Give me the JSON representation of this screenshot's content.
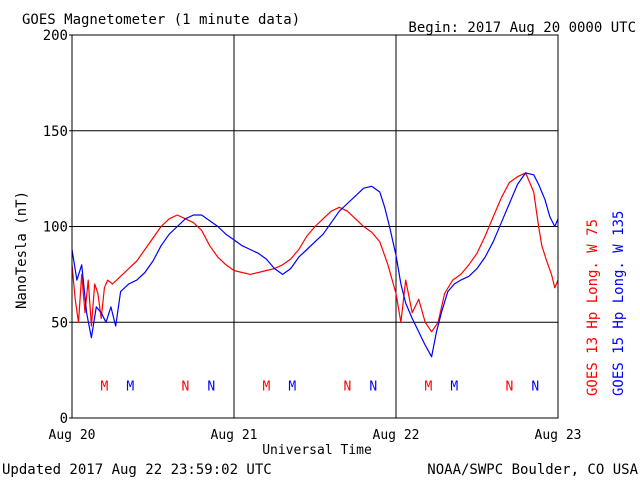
{
  "chart_data": {
    "type": "line",
    "title": "GOES Magnetometer (1 minute data)",
    "begin": "Begin:  2017 Aug 20 0000 UTC",
    "xlabel": "Universal Time",
    "ylabel": "NanoTesla (nT)",
    "xlim": [
      0,
      3
    ],
    "ylim": [
      0,
      200
    ],
    "y_ticks": [
      0,
      50,
      100,
      150,
      200
    ],
    "x_ticks": [
      {
        "value": 0,
        "label": "Aug 20"
      },
      {
        "value": 1,
        "label": "Aug 21"
      },
      {
        "value": 2,
        "label": "Aug 22"
      },
      {
        "value": 3,
        "label": "Aug 23"
      }
    ],
    "grid": true,
    "x_unit": "days since Aug 20 0000 UTC",
    "series": [
      {
        "name": "GOES 13 Hp  Long. W 75",
        "color": "#ff0000",
        "points": [
          [
            0.0,
            80
          ],
          [
            0.02,
            62
          ],
          [
            0.04,
            50
          ],
          [
            0.06,
            75
          ],
          [
            0.08,
            55
          ],
          [
            0.1,
            72
          ],
          [
            0.12,
            48
          ],
          [
            0.14,
            70
          ],
          [
            0.16,
            65
          ],
          [
            0.18,
            52
          ],
          [
            0.2,
            68
          ],
          [
            0.22,
            72
          ],
          [
            0.25,
            70
          ],
          [
            0.3,
            74
          ],
          [
            0.35,
            78
          ],
          [
            0.4,
            82
          ],
          [
            0.45,
            88
          ],
          [
            0.5,
            94
          ],
          [
            0.55,
            100
          ],
          [
            0.6,
            104
          ],
          [
            0.65,
            106
          ],
          [
            0.7,
            104
          ],
          [
            0.75,
            102
          ],
          [
            0.8,
            98
          ],
          [
            0.85,
            90
          ],
          [
            0.9,
            84
          ],
          [
            0.95,
            80
          ],
          [
            1.0,
            77
          ],
          [
            1.05,
            76
          ],
          [
            1.1,
            75
          ],
          [
            1.15,
            76
          ],
          [
            1.2,
            77
          ],
          [
            1.25,
            78
          ],
          [
            1.3,
            80
          ],
          [
            1.35,
            83
          ],
          [
            1.4,
            88
          ],
          [
            1.45,
            95
          ],
          [
            1.5,
            100
          ],
          [
            1.55,
            104
          ],
          [
            1.6,
            108
          ],
          [
            1.65,
            110
          ],
          [
            1.7,
            108
          ],
          [
            1.75,
            104
          ],
          [
            1.8,
            100
          ],
          [
            1.85,
            97
          ],
          [
            1.9,
            92
          ],
          [
            1.95,
            80
          ],
          [
            2.0,
            65
          ],
          [
            2.03,
            50
          ],
          [
            2.06,
            72
          ],
          [
            2.1,
            55
          ],
          [
            2.14,
            62
          ],
          [
            2.18,
            50
          ],
          [
            2.22,
            45
          ],
          [
            2.26,
            50
          ],
          [
            2.3,
            65
          ],
          [
            2.35,
            72
          ],
          [
            2.4,
            75
          ],
          [
            2.45,
            80
          ],
          [
            2.5,
            86
          ],
          [
            2.55,
            95
          ],
          [
            2.6,
            105
          ],
          [
            2.65,
            115
          ],
          [
            2.7,
            123
          ],
          [
            2.75,
            126
          ],
          [
            2.8,
            128
          ],
          [
            2.85,
            118
          ],
          [
            2.88,
            100
          ],
          [
            2.9,
            90
          ],
          [
            2.93,
            82
          ],
          [
            2.96,
            75
          ],
          [
            2.98,
            68
          ],
          [
            3.0,
            72
          ]
        ]
      },
      {
        "name": "GOES 15 Hp  Long. W 135",
        "color": "#0000ff",
        "points": [
          [
            0.0,
            88
          ],
          [
            0.03,
            72
          ],
          [
            0.06,
            80
          ],
          [
            0.09,
            55
          ],
          [
            0.12,
            42
          ],
          [
            0.15,
            58
          ],
          [
            0.18,
            55
          ],
          [
            0.21,
            50
          ],
          [
            0.24,
            58
          ],
          [
            0.27,
            48
          ],
          [
            0.3,
            66
          ],
          [
            0.35,
            70
          ],
          [
            0.4,
            72
          ],
          [
            0.45,
            76
          ],
          [
            0.5,
            82
          ],
          [
            0.55,
            90
          ],
          [
            0.6,
            96
          ],
          [
            0.65,
            100
          ],
          [
            0.7,
            104
          ],
          [
            0.75,
            106
          ],
          [
            0.8,
            106
          ],
          [
            0.85,
            103
          ],
          [
            0.9,
            100
          ],
          [
            0.95,
            96
          ],
          [
            1.0,
            93
          ],
          [
            1.05,
            90
          ],
          [
            1.1,
            88
          ],
          [
            1.15,
            86
          ],
          [
            1.2,
            83
          ],
          [
            1.25,
            78
          ],
          [
            1.3,
            75
          ],
          [
            1.35,
            78
          ],
          [
            1.4,
            84
          ],
          [
            1.45,
            88
          ],
          [
            1.5,
            92
          ],
          [
            1.55,
            96
          ],
          [
            1.6,
            102
          ],
          [
            1.65,
            108
          ],
          [
            1.7,
            112
          ],
          [
            1.75,
            116
          ],
          [
            1.8,
            120
          ],
          [
            1.85,
            121
          ],
          [
            1.9,
            118
          ],
          [
            1.93,
            110
          ],
          [
            1.96,
            100
          ],
          [
            2.0,
            85
          ],
          [
            2.03,
            70
          ],
          [
            2.06,
            60
          ],
          [
            2.1,
            52
          ],
          [
            2.14,
            45
          ],
          [
            2.18,
            38
          ],
          [
            2.22,
            32
          ],
          [
            2.25,
            45
          ],
          [
            2.28,
            55
          ],
          [
            2.32,
            66
          ],
          [
            2.36,
            70
          ],
          [
            2.4,
            72
          ],
          [
            2.45,
            74
          ],
          [
            2.5,
            78
          ],
          [
            2.55,
            84
          ],
          [
            2.6,
            92
          ],
          [
            2.65,
            102
          ],
          [
            2.7,
            112
          ],
          [
            2.75,
            122
          ],
          [
            2.8,
            128
          ],
          [
            2.85,
            127
          ],
          [
            2.88,
            122
          ],
          [
            2.92,
            114
          ],
          [
            2.95,
            105
          ],
          [
            2.98,
            100
          ],
          [
            3.0,
            104
          ]
        ]
      }
    ],
    "markers": [
      {
        "x": 0.2,
        "label": "M",
        "series": 0
      },
      {
        "x": 0.36,
        "label": "M",
        "series": 1
      },
      {
        "x": 0.7,
        "label": "N",
        "series": 0
      },
      {
        "x": 0.86,
        "label": "N",
        "series": 1
      },
      {
        "x": 1.2,
        "label": "M",
        "series": 0
      },
      {
        "x": 1.36,
        "label": "M",
        "series": 1
      },
      {
        "x": 1.7,
        "label": "N",
        "series": 0
      },
      {
        "x": 1.86,
        "label": "N",
        "series": 1
      },
      {
        "x": 2.2,
        "label": "M",
        "series": 0
      },
      {
        "x": 2.36,
        "label": "M",
        "series": 1
      },
      {
        "x": 2.7,
        "label": "N",
        "series": 0
      },
      {
        "x": 2.86,
        "label": "N",
        "series": 1
      }
    ],
    "marker_y": 17
  },
  "footer": {
    "updated": "Updated 2017 Aug 22 23:59:02 UTC",
    "source": "NOAA/SWPC Boulder, CO USA"
  }
}
